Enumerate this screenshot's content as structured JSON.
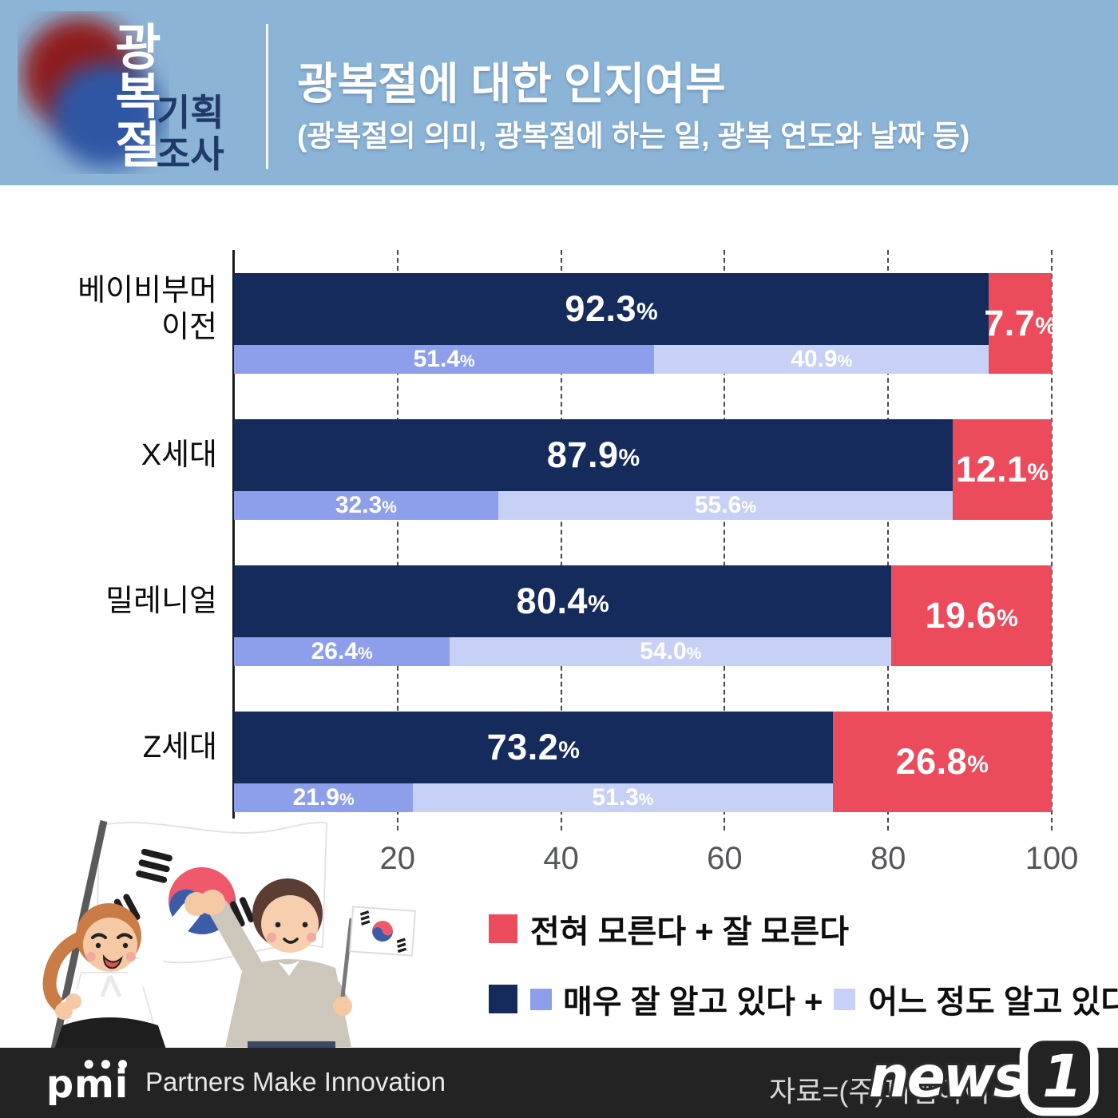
{
  "header": {
    "logo_vertical_title": "광\n복\n절",
    "logo_subtitle": "기획\n조사",
    "title": "광복절에 대한 인지여부",
    "subtitle": "(광복절의 의미, 광복절에 하는 일, 광복 연도와 날짜 등)"
  },
  "chart_data": {
    "type": "bar",
    "orientation": "horizontal",
    "categories": [
      "베이비부머\n이전",
      "X세대",
      "밀레니얼",
      "Z세대"
    ],
    "series": [
      {
        "name": "인지함 (매우 잘 알고 있다 + 어느 정도 알고 있다)",
        "color": "#152B5C",
        "values": [
          92.3,
          87.9,
          80.4,
          73.2
        ]
      },
      {
        "name": "전혀 모른다 + 잘 모른다",
        "color": "#EC4B5C",
        "values": [
          7.7,
          12.1,
          19.6,
          26.8
        ]
      },
      {
        "name": "매우 잘 알고 있다",
        "color": "#8D9FEA",
        "values": [
          51.4,
          32.3,
          26.4,
          21.9
        ]
      },
      {
        "name": "어느 정도 알고 있다",
        "color": "#C7D1F5",
        "values": [
          40.9,
          55.6,
          54.0,
          51.3
        ]
      }
    ],
    "xlim": [
      0,
      100
    ],
    "x_ticks": [
      20,
      40,
      60,
      80,
      100
    ],
    "grid": "vertical-dashed",
    "legend_position": "bottom-right"
  },
  "labels": {
    "percent": "%"
  },
  "legend": {
    "row1_label": "전혀 모른다 + 잘 모른다",
    "row2_label_a": "매우 잘 알고 있다 +",
    "row2_label_b": "어느 정도 알고 있다"
  },
  "footer": {
    "logo_text": "pmi",
    "tagline": "Partners Make Innovation",
    "source": "자료=(주)피앰아이",
    "watermark_text": "news",
    "watermark_number": "1"
  },
  "colors": {
    "header_bg": "#8CB4D6",
    "header_accent_text": "#1F3A68",
    "navy": "#152B5C",
    "red": "#EC4B5C",
    "medium_blue": "#8D9FEA",
    "light_blue": "#C7D1F5",
    "axis": "#1c1c1c",
    "tick_text": "#55565A",
    "footer_bg": "#232323"
  }
}
